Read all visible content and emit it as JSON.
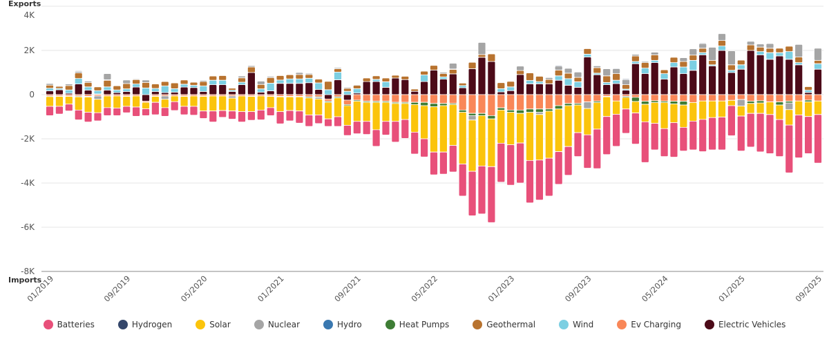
{
  "chart_data": {
    "type": "bar",
    "stacked": true,
    "y_axis_top_label": "Exports",
    "y_axis_bottom_label": "Imports",
    "ylim": [
      -8000,
      4000
    ],
    "y_ticks": [
      4000,
      2000,
      0,
      -2000,
      -4000,
      -6000,
      -8000
    ],
    "y_tick_labels": [
      "4K",
      "2K",
      "0",
      "-2K",
      "-4K",
      "-6K",
      "-8K"
    ],
    "grid": true,
    "legend_position": "bottom",
    "x_tick_labels": [
      "01/2019",
      "09/2019",
      "05/2020",
      "01/2021",
      "09/2021",
      "05/2022",
      "01/2023",
      "09/2023",
      "05/2024",
      "01/2025",
      "09/2025"
    ],
    "categories": [
      "01/2019",
      "02/2019",
      "03/2019",
      "04/2019",
      "05/2019",
      "06/2019",
      "07/2019",
      "08/2019",
      "09/2019",
      "10/2019",
      "11/2019",
      "12/2019",
      "01/2020",
      "02/2020",
      "03/2020",
      "04/2020",
      "05/2020",
      "06/2020",
      "07/2020",
      "08/2020",
      "09/2020",
      "10/2020",
      "11/2020",
      "12/2020",
      "01/2021",
      "02/2021",
      "03/2021",
      "04/2021",
      "05/2021",
      "06/2021",
      "07/2021",
      "08/2021",
      "09/2021",
      "10/2021",
      "11/2021",
      "12/2021",
      "01/2022",
      "02/2022",
      "03/2022",
      "04/2022",
      "05/2022",
      "06/2022",
      "07/2022",
      "08/2022",
      "09/2022",
      "10/2022",
      "11/2022",
      "12/2022",
      "01/2023",
      "02/2023",
      "03/2023",
      "04/2023",
      "05/2023",
      "06/2023",
      "07/2023",
      "08/2023",
      "09/2023",
      "10/2023",
      "11/2023",
      "12/2023",
      "01/2024",
      "02/2024",
      "03/2024",
      "04/2024",
      "05/2024",
      "06/2024",
      "07/2024",
      "08/2024",
      "09/2024",
      "10/2024",
      "11/2024",
      "12/2024",
      "01/2025",
      "02/2025",
      "03/2025",
      "04/2025",
      "05/2025",
      "06/2025",
      "07/2025",
      "08/2025",
      "09/2025"
    ],
    "series": [
      {
        "name": "Batteries",
        "color": "#e8507a",
        "values": [
          -420,
          -350,
          -310,
          -440,
          -440,
          -370,
          -360,
          -340,
          -290,
          -420,
          -310,
          -560,
          -390,
          -400,
          -380,
          -400,
          -340,
          -500,
          -310,
          -370,
          -470,
          -390,
          -440,
          -360,
          -550,
          -470,
          -550,
          -520,
          -390,
          -340,
          -440,
          -460,
          -560,
          -590,
          -750,
          -620,
          -940,
          -850,
          -990,
          -820,
          -1030,
          -1000,
          -1200,
          -1450,
          -2010,
          -2170,
          -2530,
          -1760,
          -1830,
          -1810,
          -1920,
          -1810,
          -1710,
          -1480,
          -1300,
          -1080,
          -1510,
          -1790,
          -1720,
          -1450,
          -1100,
          -1410,
          -1840,
          -1200,
          -1260,
          -1560,
          -1070,
          -1300,
          -1460,
          -1460,
          -1480,
          -1360,
          -1580,
          -1520,
          -1740,
          -1770,
          -1670,
          -2160,
          -1940,
          -1680,
          -2200
        ]
      },
      {
        "name": "Hydrogen",
        "color": "#34476b",
        "values": [
          0,
          0,
          0,
          30,
          0,
          0,
          0,
          0,
          0,
          0,
          0,
          0,
          0,
          0,
          0,
          0,
          0,
          0,
          0,
          0,
          0,
          0,
          0,
          0,
          0,
          0,
          0,
          0,
          0,
          0,
          0,
          0,
          30,
          0,
          0,
          0,
          0,
          0,
          0,
          0,
          0,
          0,
          0,
          0,
          0,
          0,
          0,
          0,
          0,
          0,
          0,
          0,
          0,
          30,
          0,
          0,
          0,
          0,
          0,
          30,
          30,
          0,
          0,
          0,
          0,
          0,
          0,
          0,
          30,
          0,
          0,
          0,
          0,
          0,
          0,
          0,
          0,
          0,
          0,
          0,
          0
        ]
      },
      {
        "name": "Solar",
        "color": "#fbc40c",
        "values": [
          -440,
          -450,
          -350,
          -600,
          -690,
          -610,
          -530,
          -550,
          -450,
          -500,
          -290,
          -270,
          -380,
          -260,
          -450,
          -470,
          -660,
          -680,
          -660,
          -580,
          -710,
          -690,
          -640,
          -510,
          -670,
          -620,
          -640,
          -770,
          -720,
          -750,
          -850,
          -890,
          -910,
          -860,
          -1240,
          -860,
          -810,
          -730,
          -1250,
          -1500,
          -2050,
          -2100,
          -1850,
          -2340,
          -2320,
          -2280,
          -2160,
          -1500,
          -1470,
          -1340,
          -2180,
          -2060,
          -2130,
          -1930,
          -1850,
          -1250,
          -1190,
          -1200,
          -890,
          -600,
          -520,
          -520,
          -790,
          -940,
          -1180,
          -850,
          -1010,
          -840,
          -830,
          -750,
          -730,
          -240,
          -450,
          -450,
          -470,
          -570,
          -660,
          -700,
          -630,
          -660,
          -610
        ]
      },
      {
        "name": "Nuclear",
        "color": "#a5a5a5",
        "values": [
          70,
          30,
          70,
          70,
          60,
          -150,
          280,
          0,
          160,
          30,
          110,
          0,
          -150,
          0,
          0,
          0,
          50,
          0,
          0,
          -100,
          80,
          60,
          150,
          50,
          0,
          0,
          90,
          50,
          -60,
          0,
          50,
          50,
          0,
          0,
          0,
          0,
          0,
          0,
          0,
          0,
          0,
          60,
          260,
          0,
          -200,
          550,
          0,
          0,
          0,
          200,
          0,
          -100,
          80,
          180,
          220,
          240,
          -300,
          80,
          320,
          220,
          230,
          70,
          50,
          120,
          0,
          0,
          170,
          280,
          210,
          590,
          310,
          630,
          -300,
          160,
          140,
          210,
          0,
          -300,
          570,
          0,
          550
        ]
      },
      {
        "name": "Hydro",
        "color": "#3a78b0",
        "values": [
          0,
          0,
          0,
          0,
          0,
          0,
          20,
          0,
          0,
          0,
          0,
          0,
          0,
          0,
          0,
          0,
          0,
          0,
          0,
          0,
          0,
          0,
          0,
          0,
          0,
          0,
          0,
          0,
          0,
          0,
          0,
          0,
          0,
          0,
          0,
          0,
          0,
          0,
          0,
          0,
          0,
          0,
          20,
          0,
          0,
          0,
          0,
          0,
          0,
          0,
          0,
          0,
          0,
          0,
          0,
          0,
          0,
          0,
          0,
          0,
          0,
          0,
          0,
          0,
          0,
          0,
          0,
          0,
          0,
          0,
          0,
          0,
          0,
          0,
          0,
          0,
          0,
          0,
          0,
          0,
          0
        ]
      },
      {
        "name": "Heat Pumps",
        "color": "#3e7d35",
        "values": [
          -30,
          -20,
          -20,
          -40,
          -30,
          0,
          0,
          0,
          -20,
          0,
          0,
          -20,
          0,
          0,
          -20,
          0,
          -20,
          0,
          0,
          0,
          0,
          -20,
          0,
          -20,
          -20,
          -20,
          -20,
          -50,
          -40,
          -50,
          -50,
          -50,
          -50,
          -50,
          -50,
          -50,
          -50,
          -50,
          -100,
          -150,
          -150,
          -100,
          -50,
          -100,
          -100,
          -100,
          -150,
          -100,
          -100,
          -150,
          -150,
          -150,
          -100,
          -150,
          -100,
          -70,
          0,
          -60,
          -20,
          0,
          -50,
          -190,
          -140,
          -80,
          -60,
          -120,
          -170,
          0,
          0,
          0,
          0,
          0,
          0,
          -100,
          -100,
          0,
          -140,
          -80,
          0,
          -80,
          0
        ]
      },
      {
        "name": "Geothermal",
        "color": "#b8732f",
        "values": [
          140,
          90,
          200,
          250,
          200,
          170,
          300,
          190,
          240,
          200,
          250,
          200,
          200,
          260,
          190,
          140,
          200,
          190,
          210,
          90,
          200,
          250,
          200,
          250,
          200,
          190,
          200,
          170,
          170,
          380,
          150,
          130,
          150,
          160,
          160,
          170,
          125,
          150,
          100,
          170,
          210,
          150,
          200,
          110,
          290,
          120,
          340,
          270,
          250,
          180,
          340,
          240,
          200,
          260,
          250,
          200,
          250,
          250,
          300,
          300,
          200,
          250,
          250,
          250,
          170,
          240,
          250,
          240,
          200,
          200,
          250,
          250,
          210,
          250,
          200,
          200,
          200,
          240,
          250,
          160,
          150
        ]
      },
      {
        "name": "Wind",
        "color": "#7ccfe2",
        "values": [
          120,
          60,
          150,
          250,
          150,
          150,
          150,
          120,
          120,
          140,
          300,
          140,
          300,
          160,
          130,
          100,
          250,
          200,
          200,
          60,
          110,
          0,
          150,
          350,
          150,
          200,
          200,
          200,
          300,
          220,
          350,
          150,
          200,
          0,
          100,
          250,
          0,
          0,
          0,
          300,
          0,
          100,
          0,
          100,
          0,
          0,
          0,
          150,
          170,
          0,
          150,
          100,
          0,
          200,
          300,
          250,
          130,
          70,
          100,
          150,
          50,
          100,
          250,
          100,
          250,
          200,
          300,
          450,
          100,
          50,
          200,
          100,
          200,
          0,
          150,
          300,
          150,
          350,
          100,
          100,
          250
        ]
      },
      {
        "name": "Ev Charging",
        "color": "#f98758",
        "values": [
          -60,
          -60,
          -60,
          -60,
          -80,
          -60,
          -60,
          -60,
          -60,
          -60,
          -50,
          -60,
          -60,
          -60,
          -60,
          -60,
          -60,
          -60,
          -60,
          -60,
          -60,
          -60,
          -60,
          -60,
          -80,
          -80,
          -80,
          -100,
          -100,
          -100,
          -100,
          -200,
          -250,
          -300,
          -300,
          -300,
          -350,
          -350,
          -350,
          -350,
          -400,
          -400,
          -400,
          -700,
          -850,
          -850,
          -950,
          -600,
          -700,
          -700,
          -650,
          -650,
          -650,
          -500,
          -400,
          -400,
          -330,
          -300,
          -80,
          -290,
          -80,
          -120,
          -300,
          -280,
          -300,
          -300,
          -300,
          -360,
          -290,
          -290,
          -290,
          -260,
          -220,
          -300,
          -280,
          -330,
          -330,
          -300,
          -290,
          -250,
          -290
        ]
      },
      {
        "name": "Electric Vehicles",
        "color": "#4c0a18",
        "values": [
          170,
          220,
          60,
          480,
          200,
          30,
          200,
          90,
          140,
          340,
          -300,
          140,
          90,
          110,
          340,
          320,
          140,
          450,
          450,
          140,
          450,
          1000,
          110,
          170,
          510,
          510,
          510,
          540,
          230,
          -200,
          670,
          -250,
          70,
          590,
          590,
          330,
          750,
          680,
          150,
          590,
          1110,
          700,
          940,
          310,
          1170,
          1690,
          1500,
          120,
          180,
          910,
          490,
          490,
          490,
          650,
          420,
          330,
          1700,
          900,
          450,
          500,
          200,
          1400,
          950,
          1450,
          700,
          1250,
          950,
          1100,
          1800,
          1300,
          2000,
          1000,
          1150,
          2000,
          1800,
          1600,
          1750,
          1600,
          1350,
          100,
          1150
        ]
      }
    ]
  }
}
